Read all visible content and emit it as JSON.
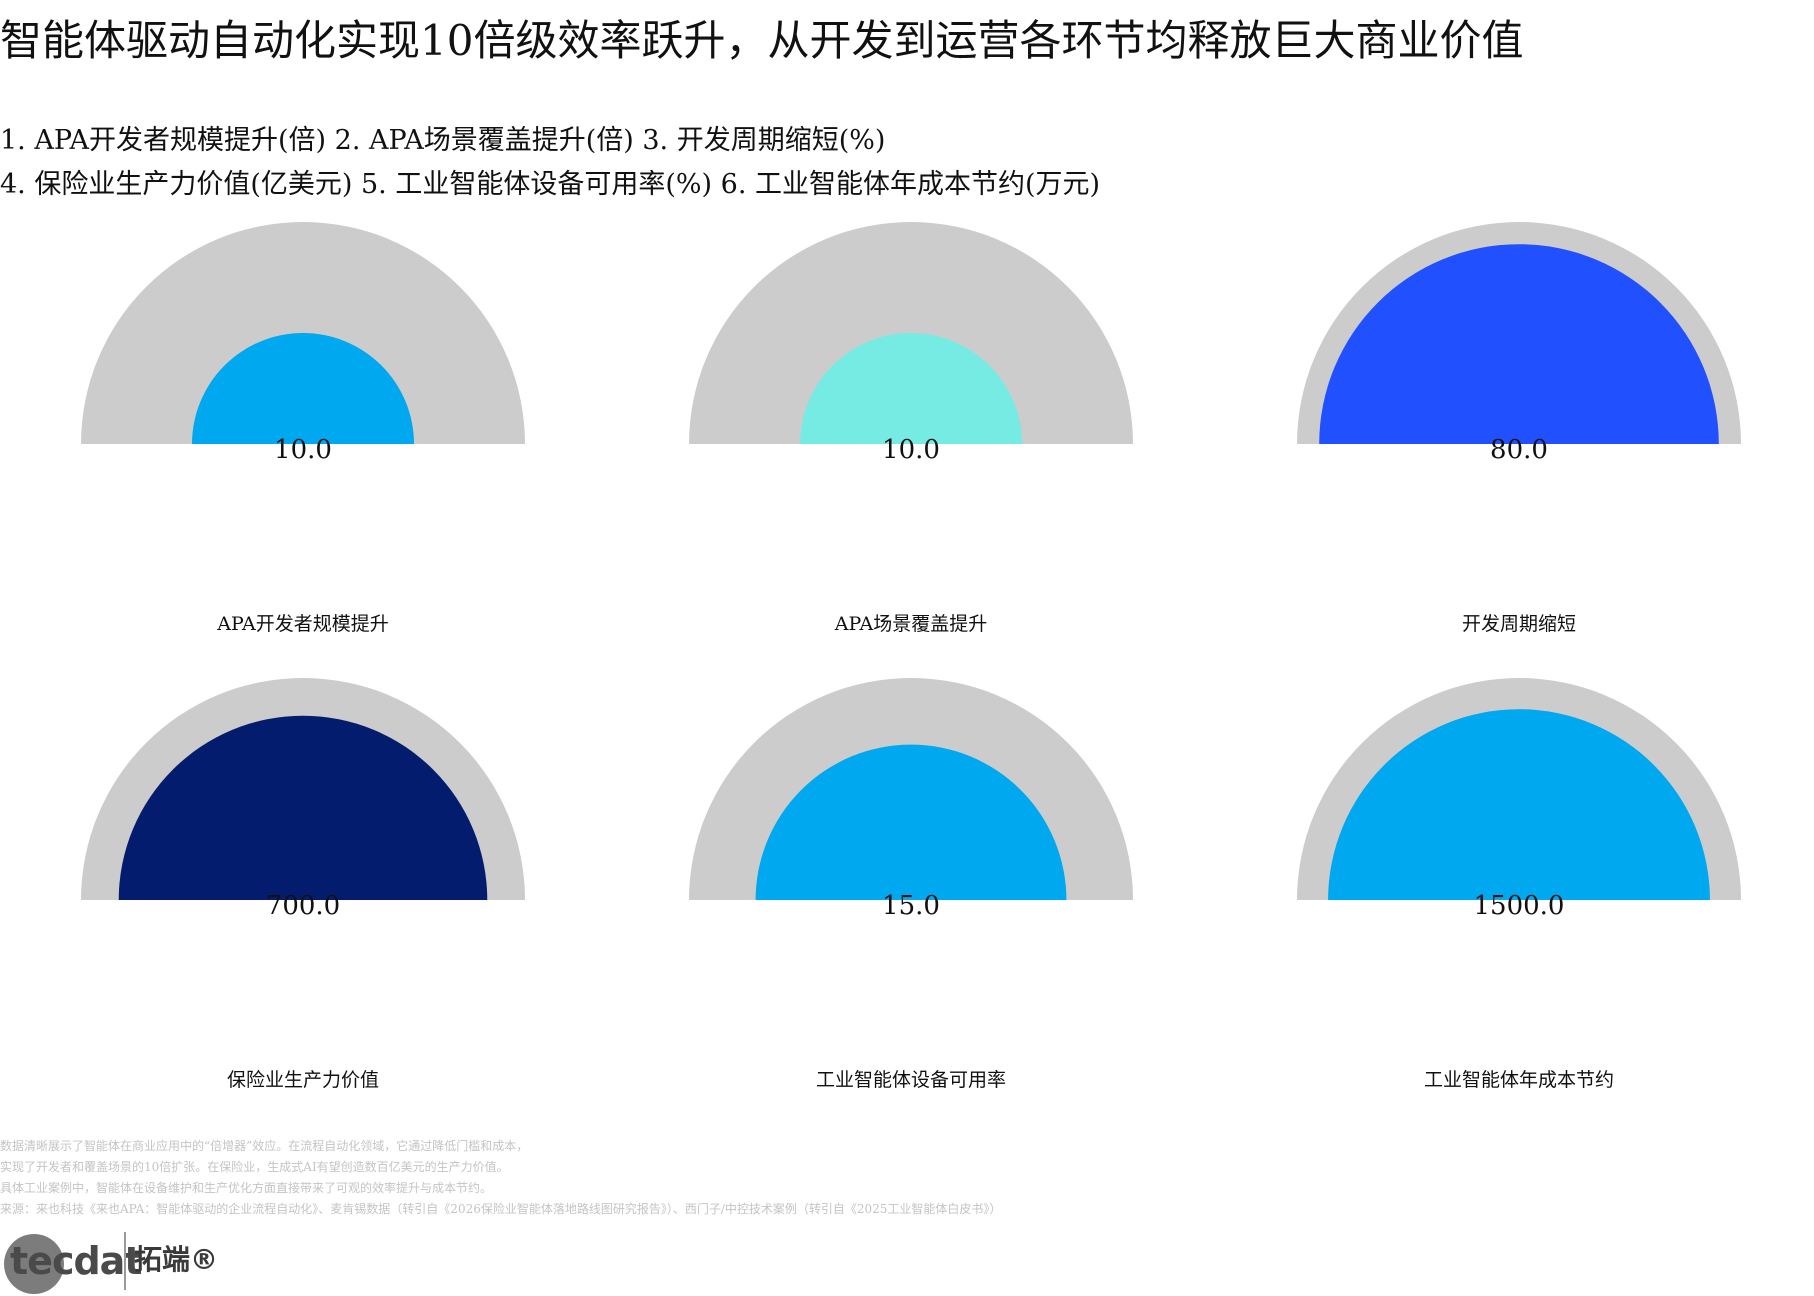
{
  "title": "智能体驱动自动化实现10倍级效率跃升，从开发到运营各环节均释放巨大商业价值",
  "legend_lines": [
    "1. APA开发者规模提升(倍) 2. APA场景覆盖提升(倍) 3. 开发周期缩短(%)",
    "4. 保险业生产力价值(亿美元) 5. 工业智能体设备可用率(%) 6. 工业智能体年成本节约(万元)"
  ],
  "chart_data": [
    {
      "type": "gauge",
      "label": "APA开发者规模提升",
      "value": 10.0,
      "value_text": "10.0",
      "fill_fraction": 0.5,
      "color": "#00a8ef"
    },
    {
      "type": "gauge",
      "label": "APA场景覆盖提升",
      "value": 10.0,
      "value_text": "10.0",
      "fill_fraction": 0.5,
      "color": "#76ebe3"
    },
    {
      "type": "gauge",
      "label": "开发周期缩短",
      "value": 80.0,
      "value_text": "80.0",
      "fill_fraction": 0.9,
      "color": "#2150ff"
    },
    {
      "type": "gauge",
      "label": "保险业生产力价值",
      "value": 700.0,
      "value_text": "700.0",
      "fill_fraction": 0.83,
      "color": "#041c6e"
    },
    {
      "type": "gauge",
      "label": "工业智能体设备可用率",
      "value": 15.0,
      "value_text": "15.0",
      "fill_fraction": 0.7,
      "color": "#00a8ef"
    },
    {
      "type": "gauge",
      "label": "工业智能体年成本节约",
      "value": 1500.0,
      "value_text": "1500.0",
      "fill_fraction": 0.86,
      "color": "#00a8ef"
    }
  ],
  "track_color": "#cccccc",
  "notes": [
    "数据清晰展示了智能体在商业应用中的“倍增器”效应。在流程自动化领域，它通过降低门槛和成本，",
    "实现了开发者和覆盖场景的10倍扩张。在保险业，生成式AI有望创造数百亿美元的生产力价值。",
    "具体工业案例中，智能体在设备维护和生产优化方面直接带来了可观的效率提升与成本节约。",
    "来源：来也科技《来也APA：智能体驱动的企业流程自动化》、麦肯锡数据（转引自《2026保险业智能体落地路线图研究报告》）、西门子/中控技术案例（转引自《2025工业智能体白皮书》）"
  ],
  "logo": {
    "word": "tecdat",
    "cn": "拓端®"
  }
}
